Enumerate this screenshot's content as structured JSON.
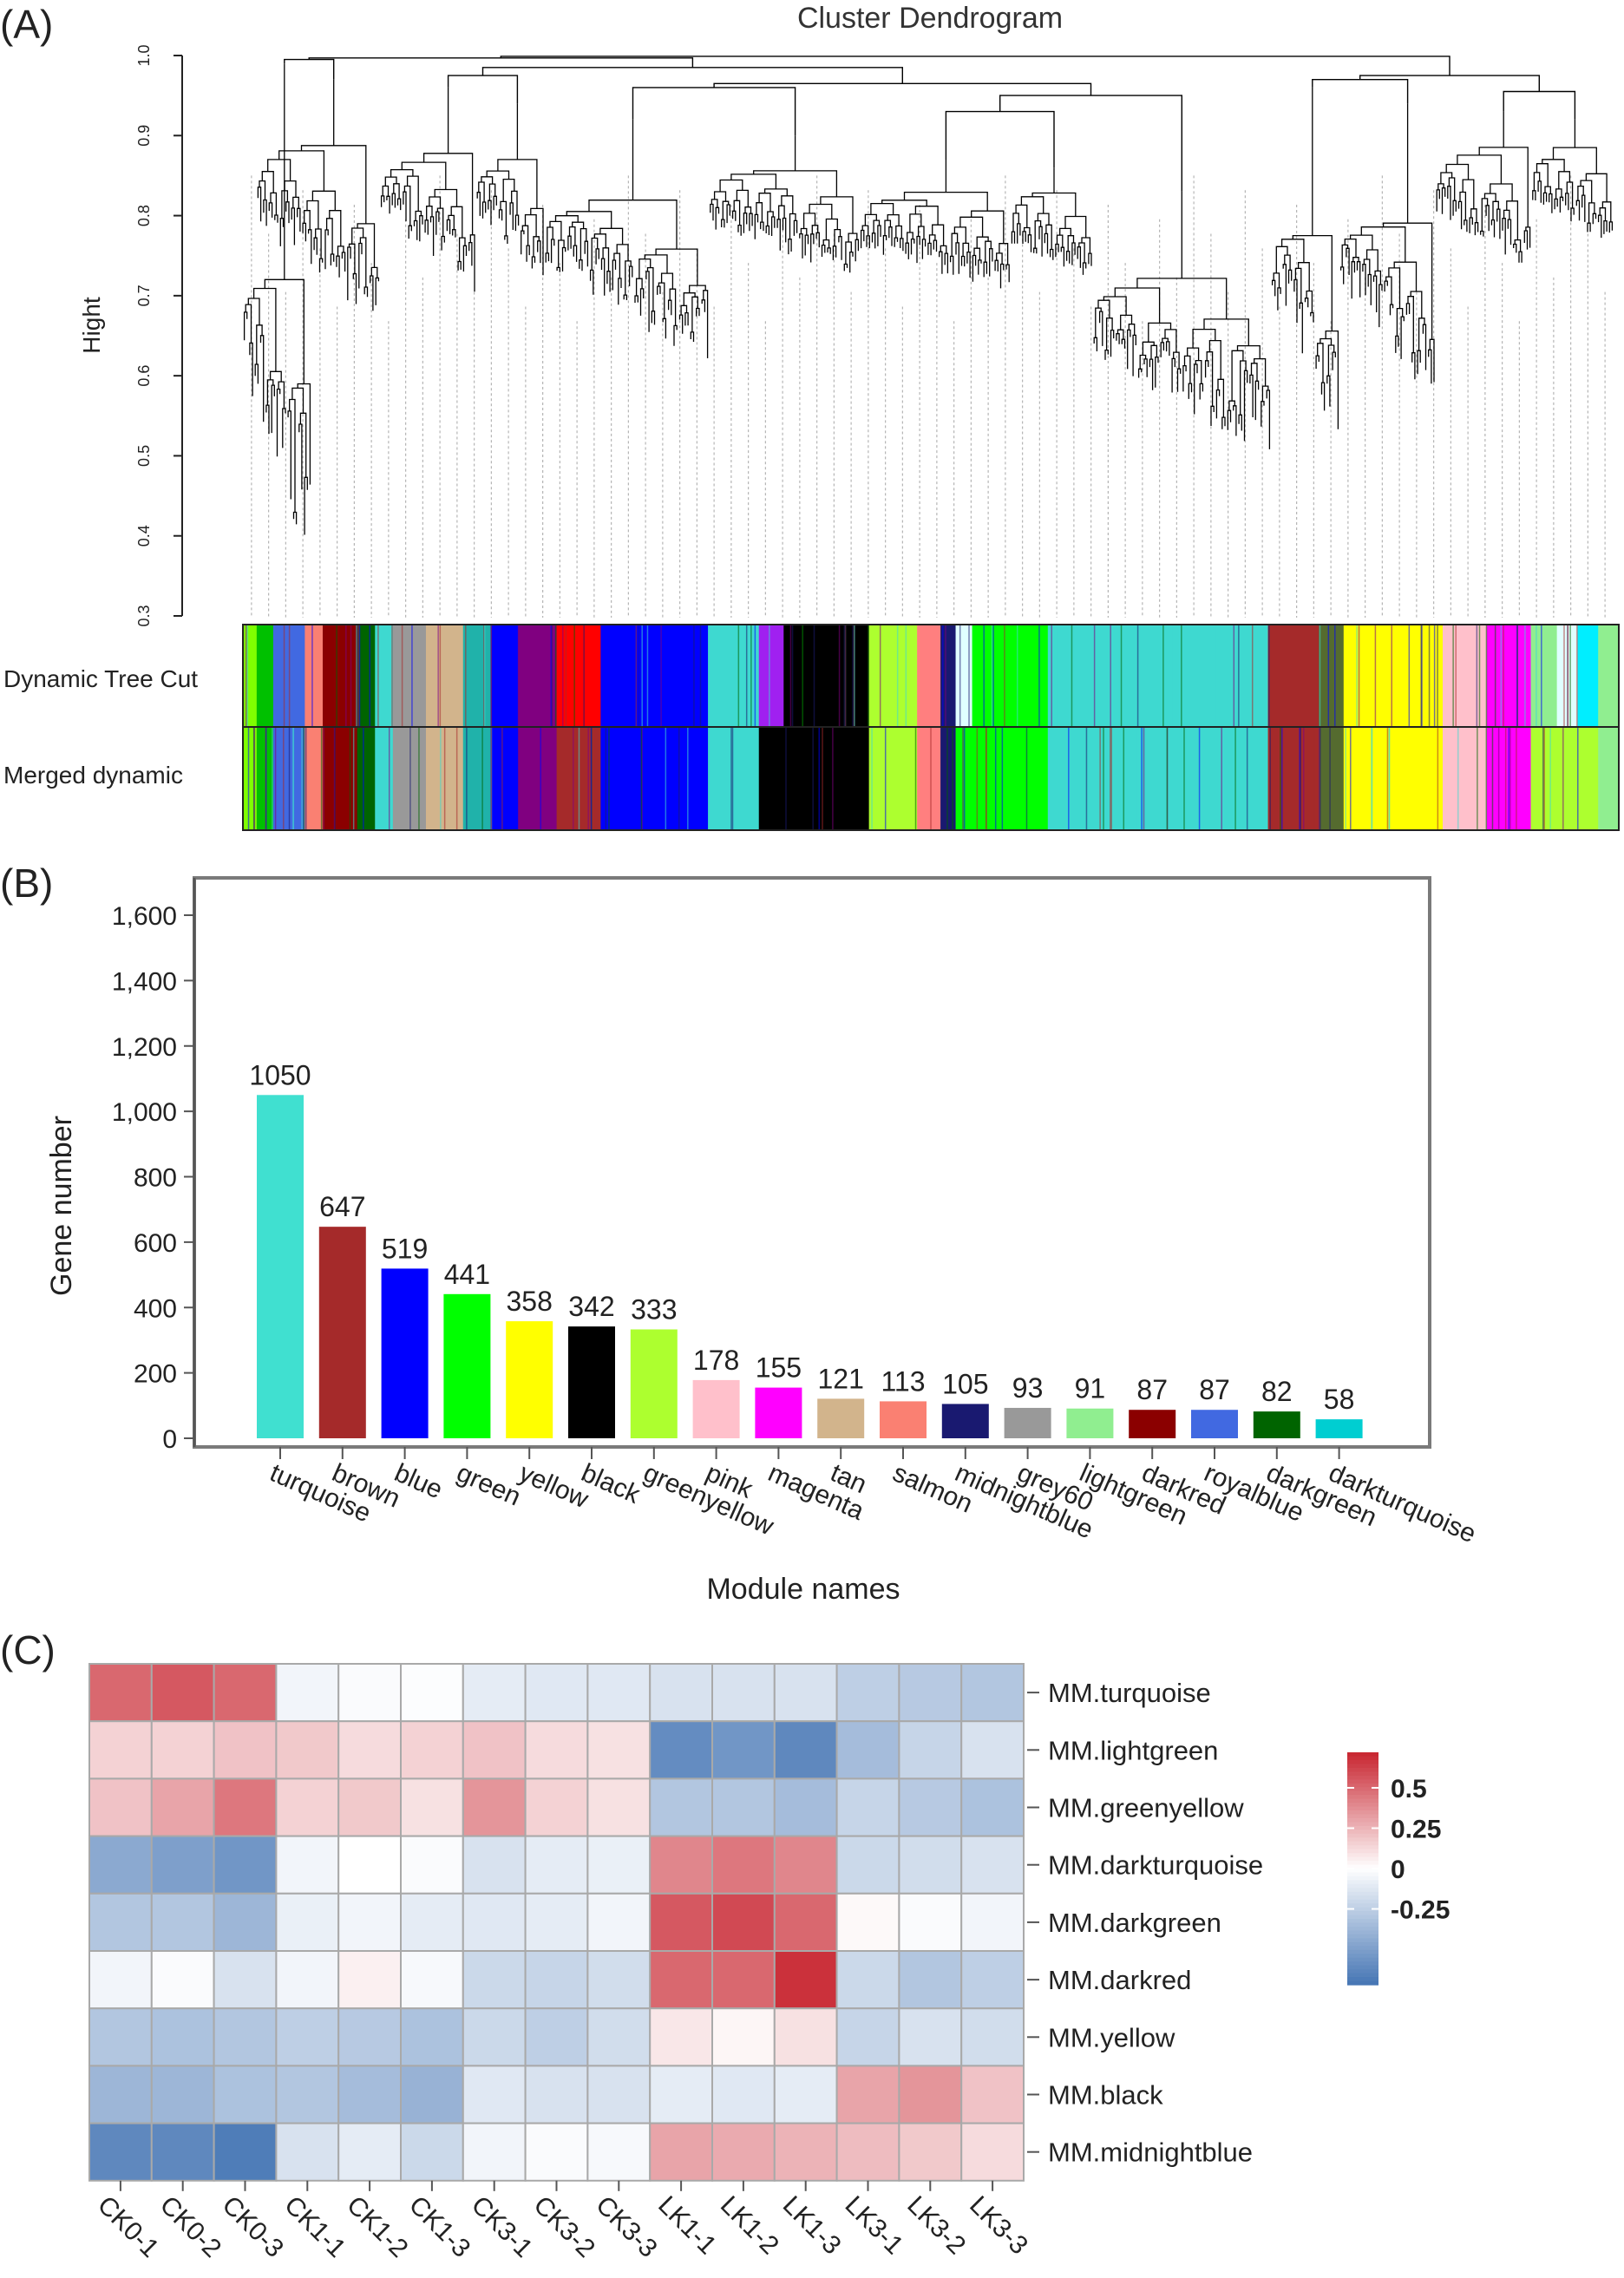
{
  "panels": {
    "a": {
      "label": "(A)",
      "title": "Cluster Dendrogram",
      "ylabel": "Hight",
      "yticks": [
        "1.0",
        "0.9",
        "0.8",
        "0.7",
        "0.6",
        "0.5",
        "0.4",
        "0.3"
      ],
      "row_labels": [
        "Dynamic Tree Cut",
        "Merged dynamic"
      ]
    },
    "b": {
      "label": "(B)"
    },
    "c": {
      "label": "(C)"
    }
  },
  "chart_data": [
    {
      "type": "dendrogram",
      "title": "Cluster Dendrogram",
      "ylabel": "Hight",
      "ylim": [
        0.3,
        1.0
      ],
      "clusters": [
        {
          "start": 0.0,
          "end": 0.05,
          "top": 0.99,
          "bottom": 0.33
        },
        {
          "start": 0.01,
          "end": 0.1,
          "top": 0.97,
          "bottom": 0.66
        },
        {
          "start": 0.1,
          "end": 0.17,
          "top": 0.96,
          "bottom": 0.7
        },
        {
          "start": 0.17,
          "end": 0.22,
          "top": 0.94,
          "bottom": 0.72
        },
        {
          "start": 0.22,
          "end": 0.34,
          "top": 0.92,
          "bottom": 0.61
        },
        {
          "start": 0.34,
          "end": 0.45,
          "top": 0.9,
          "bottom": 0.72
        },
        {
          "start": 0.45,
          "end": 0.56,
          "top": 0.87,
          "bottom": 0.7
        },
        {
          "start": 0.56,
          "end": 0.62,
          "top": 0.86,
          "bottom": 0.72
        },
        {
          "start": 0.62,
          "end": 0.75,
          "top": 0.83,
          "bottom": 0.49
        },
        {
          "start": 0.75,
          "end": 0.8,
          "top": 0.96,
          "bottom": 0.5
        },
        {
          "start": 0.8,
          "end": 0.87,
          "top": 0.94,
          "bottom": 0.56
        },
        {
          "start": 0.87,
          "end": 0.94,
          "top": 0.93,
          "bottom": 0.73
        },
        {
          "start": 0.94,
          "end": 1.0,
          "top": 0.92,
          "bottom": 0.76
        }
      ],
      "rows": [
        {
          "name": "Dynamic Tree Cut",
          "segments": [
            {
              "color": "#7fff00",
              "start": 0.0,
              "end": 0.01
            },
            {
              "color": "#00c000",
              "start": 0.01,
              "end": 0.022
            },
            {
              "color": "#4169e1",
              "start": 0.022,
              "end": 0.045
            },
            {
              "color": "#fa8072",
              "start": 0.045,
              "end": 0.058
            },
            {
              "color": "#8b0000",
              "start": 0.058,
              "end": 0.083
            },
            {
              "color": "#006400",
              "start": 0.083,
              "end": 0.096
            },
            {
              "color": "#3ed9d0",
              "start": 0.096,
              "end": 0.109
            },
            {
              "color": "#999999",
              "start": 0.109,
              "end": 0.133
            },
            {
              "color": "#d2b48c",
              "start": 0.133,
              "end": 0.16
            },
            {
              "color": "#20b2aa",
              "start": 0.16,
              "end": 0.18
            },
            {
              "color": "#0000ff",
              "start": 0.18,
              "end": 0.2
            },
            {
              "color": "#800080",
              "start": 0.2,
              "end": 0.228
            },
            {
              "color": "#ff0000",
              "start": 0.228,
              "end": 0.26
            },
            {
              "color": "#0000ff",
              "start": 0.26,
              "end": 0.338
            },
            {
              "color": "#3ed9d0",
              "start": 0.338,
              "end": 0.375
            },
            {
              "color": "#a020f0",
              "start": 0.375,
              "end": 0.393
            },
            {
              "color": "#000000",
              "start": 0.393,
              "end": 0.455
            },
            {
              "color": "#adff2f",
              "start": 0.455,
              "end": 0.49
            },
            {
              "color": "#ff7f7f",
              "start": 0.49,
              "end": 0.507
            },
            {
              "color": "#191970",
              "start": 0.507,
              "end": 0.518
            },
            {
              "color": "#e0ffff",
              "start": 0.518,
              "end": 0.53
            },
            {
              "color": "#00ff00",
              "start": 0.53,
              "end": 0.585
            },
            {
              "color": "#3ed9d0",
              "start": 0.585,
              "end": 0.745
            },
            {
              "color": "#a52a2a",
              "start": 0.745,
              "end": 0.782
            },
            {
              "color": "#556b2f",
              "start": 0.782,
              "end": 0.8
            },
            {
              "color": "#ffff00",
              "start": 0.8,
              "end": 0.872
            },
            {
              "color": "#ffc0cb",
              "start": 0.872,
              "end": 0.904
            },
            {
              "color": "#ff00ff",
              "start": 0.904,
              "end": 0.936
            },
            {
              "color": "#90ee90",
              "start": 0.936,
              "end": 0.955
            },
            {
              "color": "#e0ffff",
              "start": 0.955,
              "end": 0.97
            },
            {
              "color": "#00eeff",
              "start": 0.97,
              "end": 0.985
            },
            {
              "color": "#90ee90",
              "start": 0.985,
              "end": 1.0
            }
          ]
        },
        {
          "name": "Merged dynamic",
          "segments": [
            {
              "color": "#7fff00",
              "start": 0.0,
              "end": 0.01
            },
            {
              "color": "#00c000",
              "start": 0.01,
              "end": 0.022
            },
            {
              "color": "#4169e1",
              "start": 0.022,
              "end": 0.045
            },
            {
              "color": "#fa8072",
              "start": 0.045,
              "end": 0.058
            },
            {
              "color": "#8b0000",
              "start": 0.058,
              "end": 0.083
            },
            {
              "color": "#006400",
              "start": 0.083,
              "end": 0.096
            },
            {
              "color": "#3ed9d0",
              "start": 0.096,
              "end": 0.109
            },
            {
              "color": "#999999",
              "start": 0.109,
              "end": 0.133
            },
            {
              "color": "#d2b48c",
              "start": 0.133,
              "end": 0.16
            },
            {
              "color": "#20b2aa",
              "start": 0.16,
              "end": 0.18
            },
            {
              "color": "#0000ff",
              "start": 0.18,
              "end": 0.2
            },
            {
              "color": "#800080",
              "start": 0.2,
              "end": 0.228
            },
            {
              "color": "#a52a2a",
              "start": 0.228,
              "end": 0.26
            },
            {
              "color": "#0000ff",
              "start": 0.26,
              "end": 0.338
            },
            {
              "color": "#3ed9d0",
              "start": 0.338,
              "end": 0.375
            },
            {
              "color": "#000000",
              "start": 0.375,
              "end": 0.455
            },
            {
              "color": "#adff2f",
              "start": 0.455,
              "end": 0.49
            },
            {
              "color": "#ff7f7f",
              "start": 0.49,
              "end": 0.507
            },
            {
              "color": "#191970",
              "start": 0.507,
              "end": 0.518
            },
            {
              "color": "#00ff00",
              "start": 0.518,
              "end": 0.585
            },
            {
              "color": "#3ed9d0",
              "start": 0.585,
              "end": 0.745
            },
            {
              "color": "#a52a2a",
              "start": 0.745,
              "end": 0.782
            },
            {
              "color": "#556b2f",
              "start": 0.782,
              "end": 0.8
            },
            {
              "color": "#ffff00",
              "start": 0.8,
              "end": 0.872
            },
            {
              "color": "#ffc0cb",
              "start": 0.872,
              "end": 0.904
            },
            {
              "color": "#ff00ff",
              "start": 0.904,
              "end": 0.936
            },
            {
              "color": "#adff2f",
              "start": 0.936,
              "end": 0.985
            },
            {
              "color": "#90ee90",
              "start": 0.985,
              "end": 1.0
            }
          ]
        }
      ]
    },
    {
      "type": "bar",
      "xlabel": "Module names",
      "ylabel": "Gene number",
      "ylim": [
        0,
        1600
      ],
      "yticks": [
        0,
        200,
        400,
        600,
        800,
        1000,
        1200,
        1400,
        1600
      ],
      "ytick_labels": [
        "0",
        "200",
        "400",
        "600",
        "800",
        "1,000",
        "1,200",
        "1,400",
        "1,600"
      ],
      "categories": [
        "turquoise",
        "brown",
        "blue",
        "green",
        "yellow",
        "black",
        "greenyellow",
        "pink",
        "magenta",
        "tan",
        "salmon",
        "midnightblue",
        "grey60",
        "lightgreen",
        "darkred",
        "royalblue",
        "darkgreen",
        "darkturquoise"
      ],
      "values": [
        1050,
        647,
        519,
        441,
        358,
        342,
        333,
        178,
        155,
        121,
        113,
        105,
        93,
        91,
        87,
        87,
        82,
        58
      ],
      "colors": [
        "#40e0d0",
        "#a52a2a",
        "#0000ff",
        "#00ff00",
        "#ffff00",
        "#000000",
        "#adff2f",
        "#ffc0cb",
        "#ff00ff",
        "#d2b48c",
        "#fa8072",
        "#191970",
        "#999999",
        "#90ee90",
        "#8b0000",
        "#4169e1",
        "#006400",
        "#00ced1"
      ],
      "grid": false
    },
    {
      "type": "heatmap",
      "columns": [
        "CK0-1",
        "CK0-2",
        "CK0-3",
        "CK1-1",
        "CK1-2",
        "CK1-3",
        "CK3-1",
        "CK3-2",
        "CK3-3",
        "LK1-1",
        "LK1-2",
        "LK1-3",
        "LK3-1",
        "LK3-2",
        "LK3-3"
      ],
      "rows": [
        "MM.turquoise",
        "MM.lightgreen",
        "MM.greenyellow",
        "MM.darkturquoise",
        "MM.darkgreen",
        "MM.darkred",
        "MM.yellow",
        "MM.black",
        "MM.midnightblue"
      ],
      "values": [
        [
          0.5,
          0.55,
          0.5,
          -0.05,
          -0.02,
          -0.01,
          -0.1,
          -0.12,
          -0.12,
          -0.15,
          -0.15,
          -0.15,
          -0.25,
          -0.28,
          -0.3
        ],
        [
          0.15,
          0.15,
          0.2,
          0.18,
          0.12,
          0.15,
          0.2,
          0.12,
          0.1,
          -0.6,
          -0.55,
          -0.62,
          -0.35,
          -0.22,
          -0.15
        ],
        [
          0.2,
          0.3,
          0.45,
          0.15,
          0.18,
          0.1,
          0.35,
          0.15,
          0.1,
          -0.3,
          -0.3,
          -0.35,
          -0.22,
          -0.28,
          -0.32
        ],
        [
          -0.45,
          -0.5,
          -0.55,
          -0.05,
          0.0,
          -0.02,
          -0.15,
          -0.1,
          -0.08,
          0.4,
          0.45,
          0.4,
          -0.2,
          -0.18,
          -0.15
        ],
        [
          -0.3,
          -0.3,
          -0.38,
          -0.08,
          -0.05,
          -0.1,
          -0.12,
          -0.1,
          -0.05,
          0.55,
          0.6,
          0.5,
          0.02,
          -0.02,
          -0.05
        ],
        [
          -0.05,
          -0.02,
          -0.15,
          -0.05,
          0.05,
          -0.03,
          -0.2,
          -0.22,
          -0.18,
          0.5,
          0.5,
          0.68,
          -0.2,
          -0.3,
          -0.25
        ],
        [
          -0.3,
          -0.32,
          -0.3,
          -0.25,
          -0.28,
          -0.32,
          -0.2,
          -0.25,
          -0.18,
          0.08,
          0.03,
          0.1,
          -0.22,
          -0.15,
          -0.18
        ],
        [
          -0.38,
          -0.38,
          -0.32,
          -0.3,
          -0.35,
          -0.4,
          -0.12,
          -0.15,
          -0.15,
          -0.1,
          -0.12,
          -0.1,
          0.3,
          0.35,
          0.2
        ],
        [
          -0.62,
          -0.62,
          -0.68,
          -0.15,
          -0.1,
          -0.2,
          -0.05,
          -0.02,
          -0.03,
          0.3,
          0.28,
          0.25,
          0.22,
          0.18,
          0.12
        ]
      ],
      "scale_min": -0.72,
      "scale_max": 0.72,
      "legend_ticks": [
        0.5,
        0.25,
        0,
        -0.25
      ],
      "legend_tick_labels": [
        "0.5",
        "0.25",
        "0",
        "-0.25"
      ]
    }
  ]
}
